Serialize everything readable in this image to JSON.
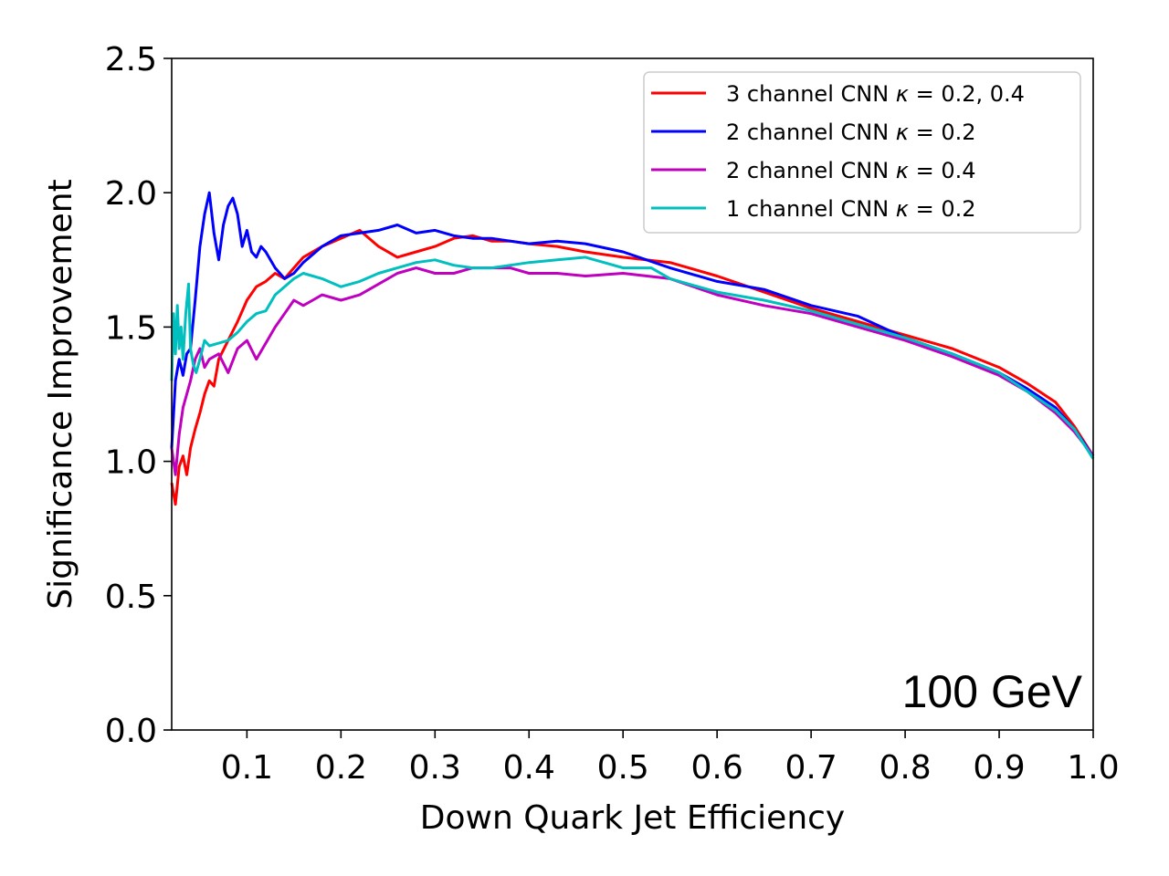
{
  "chart_data": {
    "type": "line",
    "title": "",
    "xlabel": "Down Quark Jet Efficiency",
    "ylabel": "Significance Improvement",
    "xlim": [
      0.02,
      1.0
    ],
    "ylim": [
      0.0,
      2.5
    ],
    "xticks": [
      0.1,
      0.2,
      0.3,
      0.4,
      0.5,
      0.6,
      0.7,
      0.8,
      0.9,
      1.0
    ],
    "xtick_labels": [
      "0.1",
      "0.2",
      "0.3",
      "0.4",
      "0.5",
      "0.6",
      "0.7",
      "0.8",
      "0.9",
      "1.0"
    ],
    "yticks": [
      0.0,
      0.5,
      1.0,
      1.5,
      2.0,
      2.5
    ],
    "ytick_labels": [
      "0.0",
      "0.5",
      "1.0",
      "1.5",
      "2.0",
      "2.5"
    ],
    "grid": false,
    "legend_position": "top-right",
    "annotation": "100 GeV",
    "series": [
      {
        "name": "3 channel CNN",
        "label_kappa": "κ",
        "label_value": " = 0.2, 0.4",
        "color": "#ff0000",
        "x": [
          0.02,
          0.024,
          0.028,
          0.032,
          0.036,
          0.04,
          0.045,
          0.05,
          0.055,
          0.06,
          0.065,
          0.07,
          0.08,
          0.09,
          0.1,
          0.11,
          0.12,
          0.13,
          0.14,
          0.15,
          0.16,
          0.18,
          0.2,
          0.22,
          0.24,
          0.26,
          0.28,
          0.3,
          0.32,
          0.34,
          0.36,
          0.38,
          0.4,
          0.43,
          0.46,
          0.5,
          0.55,
          0.6,
          0.65,
          0.7,
          0.75,
          0.8,
          0.85,
          0.9,
          0.93,
          0.96,
          0.98,
          1.0
        ],
        "y": [
          0.92,
          0.84,
          0.98,
          1.02,
          0.95,
          1.05,
          1.12,
          1.18,
          1.25,
          1.3,
          1.28,
          1.38,
          1.45,
          1.52,
          1.6,
          1.65,
          1.67,
          1.7,
          1.68,
          1.72,
          1.76,
          1.8,
          1.83,
          1.86,
          1.8,
          1.76,
          1.78,
          1.8,
          1.83,
          1.84,
          1.82,
          1.82,
          1.81,
          1.8,
          1.78,
          1.76,
          1.74,
          1.69,
          1.63,
          1.57,
          1.52,
          1.47,
          1.42,
          1.35,
          1.29,
          1.22,
          1.13,
          1.02
        ]
      },
      {
        "name": "2 channel CNN",
        "label_kappa": "κ",
        "label_value": " = 0.2",
        "color": "#0000ff",
        "x": [
          0.02,
          0.024,
          0.028,
          0.032,
          0.036,
          0.04,
          0.045,
          0.05,
          0.055,
          0.06,
          0.065,
          0.07,
          0.075,
          0.08,
          0.085,
          0.09,
          0.095,
          0.1,
          0.105,
          0.11,
          0.115,
          0.12,
          0.13,
          0.14,
          0.15,
          0.16,
          0.18,
          0.2,
          0.22,
          0.24,
          0.26,
          0.28,
          0.3,
          0.32,
          0.34,
          0.36,
          0.38,
          0.4,
          0.43,
          0.46,
          0.5,
          0.55,
          0.6,
          0.65,
          0.7,
          0.75,
          0.8,
          0.85,
          0.9,
          0.93,
          0.96,
          0.98,
          1.0
        ],
        "y": [
          1.05,
          1.3,
          1.38,
          1.32,
          1.4,
          1.42,
          1.6,
          1.8,
          1.92,
          2.0,
          1.85,
          1.75,
          1.88,
          1.95,
          1.98,
          1.92,
          1.8,
          1.86,
          1.78,
          1.76,
          1.8,
          1.78,
          1.72,
          1.68,
          1.7,
          1.74,
          1.8,
          1.84,
          1.85,
          1.86,
          1.88,
          1.85,
          1.86,
          1.84,
          1.83,
          1.83,
          1.82,
          1.81,
          1.82,
          1.81,
          1.78,
          1.72,
          1.67,
          1.64,
          1.58,
          1.54,
          1.46,
          1.4,
          1.33,
          1.27,
          1.2,
          1.12,
          1.02
        ]
      },
      {
        "name": "2 channel CNN",
        "label_kappa": "κ",
        "label_value": " = 0.4",
        "color": "#bf00bf",
        "x": [
          0.02,
          0.024,
          0.028,
          0.032,
          0.036,
          0.04,
          0.045,
          0.05,
          0.055,
          0.06,
          0.07,
          0.08,
          0.09,
          0.1,
          0.11,
          0.12,
          0.13,
          0.14,
          0.15,
          0.16,
          0.17,
          0.18,
          0.2,
          0.22,
          0.24,
          0.26,
          0.28,
          0.3,
          0.32,
          0.34,
          0.36,
          0.38,
          0.4,
          0.43,
          0.46,
          0.5,
          0.55,
          0.6,
          0.65,
          0.7,
          0.75,
          0.8,
          0.85,
          0.9,
          0.93,
          0.96,
          0.98,
          1.0
        ],
        "y": [
          1.05,
          0.95,
          1.1,
          1.2,
          1.25,
          1.3,
          1.38,
          1.42,
          1.35,
          1.38,
          1.4,
          1.33,
          1.42,
          1.45,
          1.38,
          1.44,
          1.5,
          1.55,
          1.6,
          1.58,
          1.6,
          1.62,
          1.6,
          1.62,
          1.66,
          1.7,
          1.72,
          1.7,
          1.7,
          1.72,
          1.72,
          1.72,
          1.7,
          1.7,
          1.69,
          1.7,
          1.68,
          1.62,
          1.58,
          1.55,
          1.5,
          1.45,
          1.39,
          1.32,
          1.26,
          1.18,
          1.11,
          1.02
        ]
      },
      {
        "name": "1 channel CNN",
        "label_kappa": "κ",
        "label_value": " = 0.2",
        "color": "#00bfbf",
        "x": [
          0.02,
          0.022,
          0.024,
          0.026,
          0.028,
          0.03,
          0.032,
          0.035,
          0.038,
          0.04,
          0.043,
          0.046,
          0.05,
          0.055,
          0.06,
          0.07,
          0.08,
          0.09,
          0.1,
          0.11,
          0.12,
          0.13,
          0.14,
          0.15,
          0.16,
          0.18,
          0.2,
          0.22,
          0.24,
          0.26,
          0.28,
          0.3,
          0.32,
          0.34,
          0.36,
          0.38,
          0.4,
          0.43,
          0.46,
          0.5,
          0.53,
          0.55,
          0.6,
          0.65,
          0.7,
          0.75,
          0.8,
          0.85,
          0.9,
          0.93,
          0.96,
          0.98,
          1.0
        ],
        "y": [
          1.3,
          1.55,
          1.4,
          1.58,
          1.42,
          1.5,
          1.38,
          1.55,
          1.66,
          1.42,
          1.36,
          1.33,
          1.38,
          1.45,
          1.43,
          1.44,
          1.45,
          1.48,
          1.52,
          1.55,
          1.56,
          1.62,
          1.65,
          1.68,
          1.7,
          1.68,
          1.65,
          1.67,
          1.7,
          1.72,
          1.74,
          1.75,
          1.73,
          1.72,
          1.72,
          1.73,
          1.74,
          1.75,
          1.76,
          1.72,
          1.72,
          1.68,
          1.63,
          1.6,
          1.56,
          1.51,
          1.46,
          1.4,
          1.33,
          1.26,
          1.19,
          1.12,
          1.01
        ]
      }
    ]
  }
}
